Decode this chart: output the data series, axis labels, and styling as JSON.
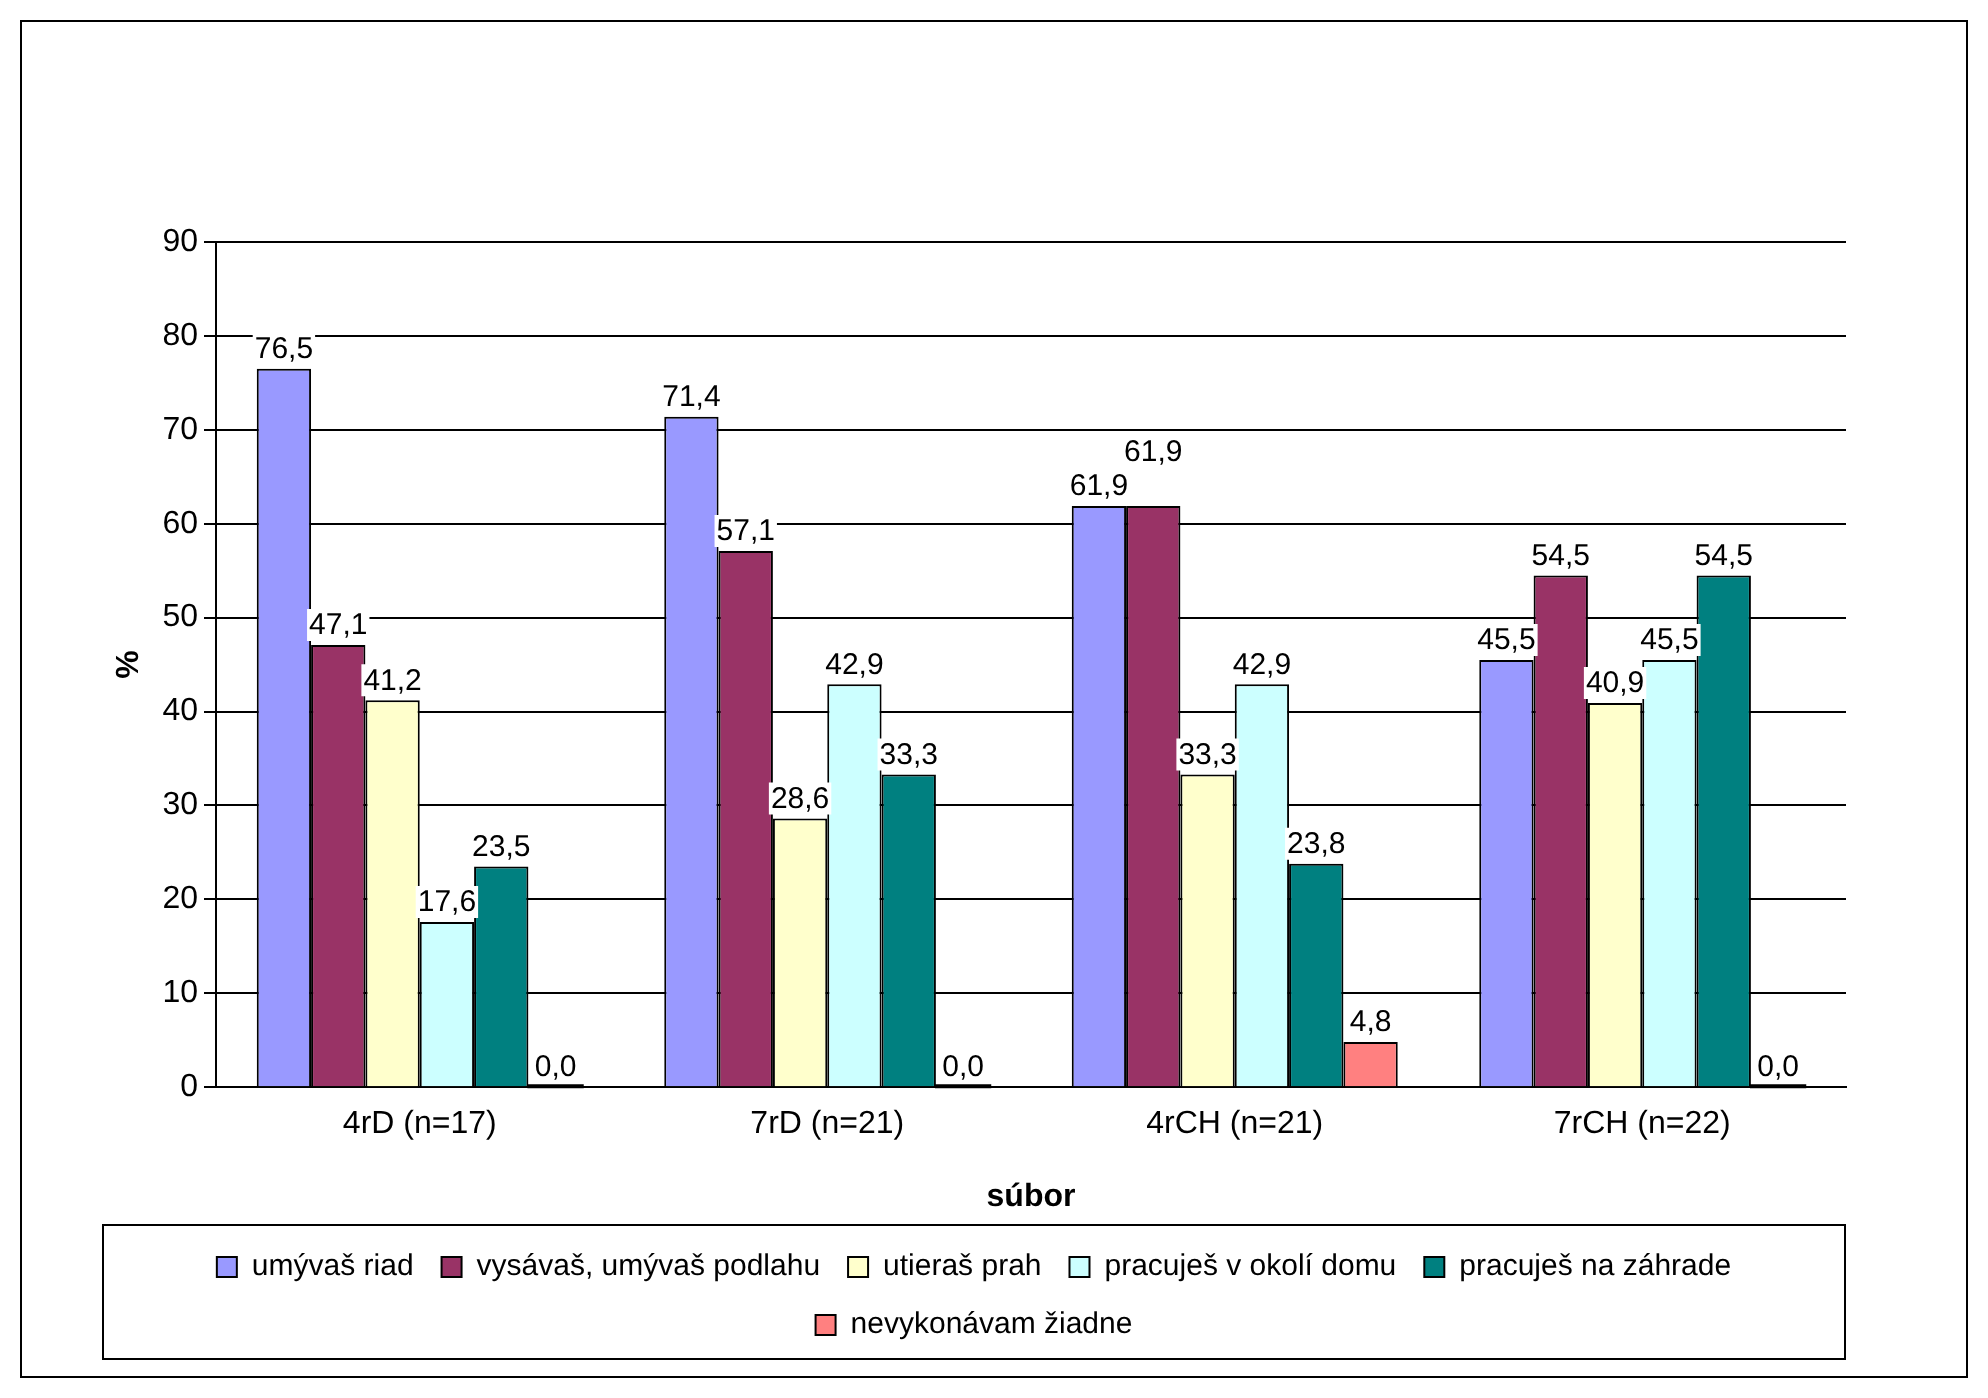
{
  "chart_data": {
    "type": "bar",
    "xlabel": "súbor",
    "ylabel": "%",
    "categories": [
      "4rD (n=17)",
      "7rD (n=21)",
      "4rCH (n=21)",
      "7rCH (n=22)"
    ],
    "ylim": [
      0,
      90
    ],
    "yticks": [
      0,
      10,
      20,
      30,
      40,
      50,
      60,
      70,
      80,
      90
    ],
    "grid": "y",
    "legend": "bottom",
    "series": [
      {
        "name": "umývaš riad",
        "color": "#9999ff",
        "values": [
          76.5,
          71.4,
          61.9,
          45.5
        ],
        "value_labels": [
          "76,5",
          "71,4",
          "61,9",
          "45,5"
        ]
      },
      {
        "name": "vysávaš, umývaš podlahu",
        "color": "#993366",
        "values": [
          47.1,
          57.1,
          61.9,
          54.5
        ],
        "value_labels": [
          "47,1",
          "57,1",
          "61,9",
          "54,5"
        ]
      },
      {
        "name": "utieraš prah",
        "color": "#ffffcc",
        "values": [
          41.2,
          28.6,
          33.3,
          40.9
        ],
        "value_labels": [
          "41,2",
          "28,6",
          "33,3",
          "40,9"
        ]
      },
      {
        "name": "pracuješ v okolí domu",
        "color": "#ccffff",
        "values": [
          17.6,
          42.9,
          42.9,
          45.5
        ],
        "value_labels": [
          "17,6",
          "42,9",
          "42,9",
          "45,5"
        ]
      },
      {
        "name": "pracuješ na záhrade",
        "color": "#008080",
        "values": [
          23.5,
          33.3,
          23.8,
          54.5
        ],
        "value_labels": [
          "23,5",
          "33,3",
          "23,8",
          "54,5"
        ]
      },
      {
        "name": "nevykonávam žiadne",
        "color": "#ff8080",
        "values": [
          0,
          0,
          4.8,
          0
        ],
        "value_labels": [
          "0,0",
          "0,0",
          "4,8",
          "0,0"
        ]
      }
    ]
  }
}
